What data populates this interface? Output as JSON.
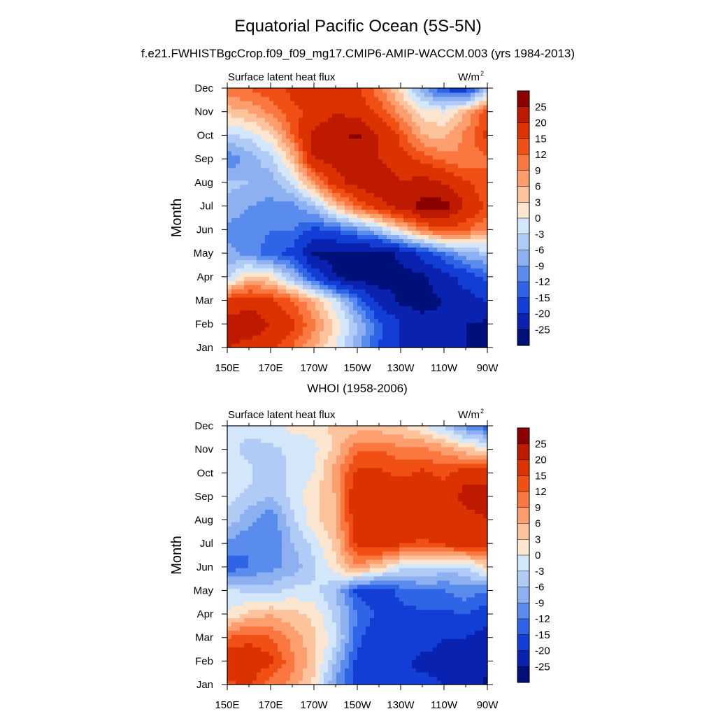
{
  "figure": {
    "title": "Equatorial Pacific Ocean (5S-5N)",
    "subtitle": "f.e21.FWHISTBgcCrop.f09_f09_mg17.CMIP6-AMIP-WACCM.003 (yrs 1984-2013)"
  },
  "chart_data": [
    {
      "type": "heatmap",
      "panel_title": "",
      "left_string": "Surface latent heat flux",
      "right_string": "W/m",
      "right_string_sup": "2",
      "ylabel": "Month",
      "xticks": [
        "150E",
        "170E",
        "170W",
        "150W",
        "130W",
        "110W",
        "90W"
      ],
      "yticks": [
        "Jan",
        "Feb",
        "Mar",
        "Apr",
        "May",
        "Jun",
        "Jul",
        "Aug",
        "Sep",
        "Oct",
        "Nov",
        "Dec"
      ],
      "x_range_degE": [
        150,
        270
      ],
      "colorbar_labels": [
        "25",
        "20",
        "15",
        "12",
        "9",
        "6",
        "3",
        "0",
        "-3",
        "-6",
        "-9",
        "-12",
        "-15",
        "-20",
        "-25"
      ],
      "colorbar_colors": [
        "#8c0000",
        "#bd1a00",
        "#dc3200",
        "#f05014",
        "#fa7840",
        "#fc9e6e",
        "#fcc39c",
        "#fde6d0",
        "#d4e6fa",
        "#b0ccf6",
        "#8cb0f0",
        "#5a8cee",
        "#2e64e6",
        "#123ed6",
        "#0a22b0",
        "#00107a"
      ],
      "grid_x_lon": [
        150,
        160,
        170,
        180,
        190,
        200,
        210,
        220,
        230,
        240,
        250,
        260,
        270
      ],
      "grid_y_month": [
        "Jan",
        "Feb",
        "Mar",
        "Apr",
        "May",
        "Jun",
        "Jul",
        "Aug",
        "Sep",
        "Oct",
        "Nov",
        "Dec"
      ],
      "values": [
        [
          20,
          18,
          16,
          12,
          6,
          0,
          -8,
          -15,
          -20,
          -23,
          -24,
          -25,
          -26
        ],
        [
          22,
          24,
          20,
          16,
          10,
          2,
          -6,
          -14,
          -20,
          -23,
          -24,
          -25,
          -26
        ],
        [
          16,
          18,
          16,
          12,
          6,
          -2,
          -12,
          -21,
          -26,
          -27,
          -25,
          -22,
          -20
        ],
        [
          -4,
          4,
          2,
          -6,
          -16,
          -25,
          -28,
          -28,
          -27,
          -26,
          -22,
          -18,
          -14
        ],
        [
          -8,
          -10,
          -14,
          -16,
          -26,
          -27,
          -27,
          -27,
          -24,
          -18,
          -12,
          -7,
          -5
        ],
        [
          -10,
          -10,
          -12,
          -12,
          -16,
          -14,
          -10,
          -5,
          3,
          10,
          14,
          12,
          9
        ],
        [
          -7,
          -9,
          -10,
          -10,
          -6,
          4,
          12,
          18,
          22,
          27,
          27,
          20,
          14
        ],
        [
          -5,
          -6,
          -8,
          -2,
          8,
          18,
          22,
          24,
          20,
          22,
          20,
          16,
          12
        ],
        [
          -12,
          -8,
          -4,
          4,
          20,
          22,
          22,
          20,
          17,
          14,
          11,
          9,
          12
        ],
        [
          -4,
          -2,
          2,
          12,
          22,
          24,
          26,
          20,
          14,
          6,
          5,
          10,
          16
        ],
        [
          4,
          6,
          10,
          14,
          16,
          20,
          18,
          14,
          8,
          2,
          0,
          6,
          14
        ],
        [
          12,
          12,
          14,
          16,
          18,
          20,
          16,
          10,
          2,
          -8,
          -16,
          -18,
          -6
        ]
      ]
    },
    {
      "type": "heatmap",
      "panel_title": "WHOI (1958-2006)",
      "left_string": "Surface latent heat flux",
      "right_string": "W/m",
      "right_string_sup": "2",
      "ylabel": "Month",
      "xticks": [
        "150E",
        "170E",
        "170W",
        "150W",
        "130W",
        "110W",
        "90W"
      ],
      "yticks": [
        "Jan",
        "Feb",
        "Mar",
        "Apr",
        "May",
        "Jun",
        "Jul",
        "Aug",
        "Sep",
        "Oct",
        "Nov",
        "Dec"
      ],
      "x_range_degE": [
        150,
        270
      ],
      "colorbar_labels": [
        "25",
        "20",
        "15",
        "12",
        "9",
        "6",
        "3",
        "0",
        "-3",
        "-6",
        "-9",
        "-12",
        "-15",
        "-20",
        "-25"
      ],
      "colorbar_colors": [
        "#8c0000",
        "#bd1a00",
        "#dc3200",
        "#f05014",
        "#fa7840",
        "#fc9e6e",
        "#fcc39c",
        "#fde6d0",
        "#d4e6fa",
        "#b0ccf6",
        "#8cb0f0",
        "#5a8cee",
        "#2e64e6",
        "#123ed6",
        "#0a22b0",
        "#00107a"
      ],
      "grid_x_lon": [
        150,
        160,
        170,
        180,
        190,
        200,
        210,
        220,
        230,
        240,
        250,
        260,
        270
      ],
      "grid_y_month": [
        "Jan",
        "Feb",
        "Mar",
        "Apr",
        "May",
        "Jun",
        "Jul",
        "Aug",
        "Sep",
        "Oct",
        "Nov",
        "Dec"
      ],
      "values": [
        [
          14,
          16,
          10,
          8,
          2,
          -10,
          -17,
          -20,
          -20,
          -18,
          -20,
          -22,
          -26
        ],
        [
          18,
          18,
          16,
          10,
          4,
          -6,
          -16,
          -17,
          -18,
          -22,
          -22,
          -22,
          -24
        ],
        [
          12,
          14,
          12,
          8,
          4,
          -2,
          -14,
          -18,
          -16,
          -16,
          -20,
          -20,
          -22
        ],
        [
          0,
          4,
          6,
          4,
          2,
          -4,
          -12,
          -16,
          -16,
          -16,
          -16,
          -15,
          -18
        ],
        [
          -2,
          -4,
          -4,
          -2,
          -2,
          -6,
          -16,
          -18,
          -14,
          -12,
          -12,
          -10,
          -12
        ],
        [
          -14,
          -12,
          -10,
          -8,
          -4,
          2,
          8,
          4,
          -2,
          -2,
          -4,
          -4,
          3
        ],
        [
          -10,
          -12,
          -12,
          -6,
          -2,
          4,
          16,
          18,
          16,
          14,
          16,
          18,
          18
        ],
        [
          -4,
          -8,
          -12,
          -4,
          2,
          6,
          18,
          20,
          18,
          18,
          16,
          18,
          20
        ],
        [
          -2,
          -4,
          -6,
          -2,
          2,
          6,
          20,
          18,
          20,
          17,
          18,
          22,
          22
        ],
        [
          -1,
          -2,
          -6,
          -2,
          0,
          8,
          16,
          16,
          14,
          16,
          14,
          18,
          18
        ],
        [
          -2,
          -4,
          -4,
          -2,
          -1,
          4,
          12,
          12,
          10,
          10,
          8,
          4,
          2
        ],
        [
          -1,
          -2,
          -1,
          1,
          1,
          4,
          4,
          4,
          3,
          0,
          -4,
          -10,
          -14
        ]
      ]
    }
  ]
}
